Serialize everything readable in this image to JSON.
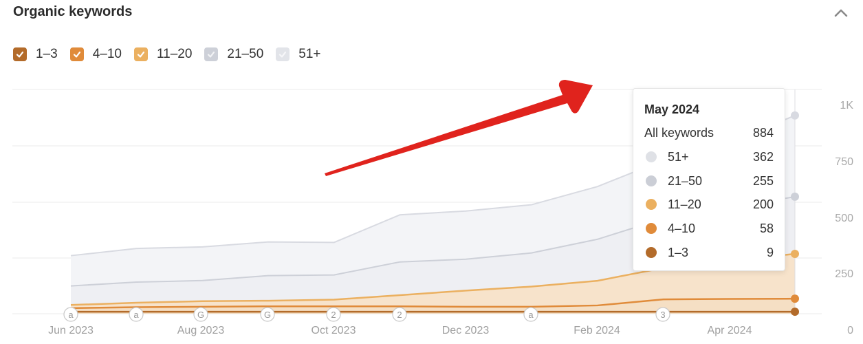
{
  "header": {
    "title": "Organic keywords",
    "collapse_icon": "chevron-up-icon"
  },
  "legend": {
    "items": [
      {
        "label": "1–3",
        "color": "#b36b2a",
        "checked": true
      },
      {
        "label": "4–10",
        "color": "#e08b3a",
        "checked": true
      },
      {
        "label": "11–20",
        "color": "#ebb060",
        "checked": true
      },
      {
        "label": "21–50",
        "color": "#cdd0d8",
        "checked": true
      },
      {
        "label": "51+",
        "color": "#e2e4e9",
        "checked": true
      }
    ]
  },
  "annotation": {
    "type": "red-arrow-icon",
    "color": "#e0231d"
  },
  "tooltip": {
    "title": "May 2024",
    "total_label": "All keywords",
    "total_value": "884",
    "rows": [
      {
        "label": "51+",
        "value": "362",
        "color": "#dfe1e6"
      },
      {
        "label": "21–50",
        "value": "255",
        "color": "#cbced6"
      },
      {
        "label": "11–20",
        "value": "200",
        "color": "#ebb060"
      },
      {
        "label": "4–10",
        "value": "58",
        "color": "#e08b3a"
      },
      {
        "label": "1–3",
        "value": "9",
        "color": "#b36b2a"
      }
    ]
  },
  "axis": {
    "x_labels": [
      "Jun 2023",
      "Aug 2023",
      "Oct 2023",
      "Dec 2023",
      "Feb 2024",
      "Apr 2024"
    ],
    "y_labels": [
      "1K",
      "750",
      "500",
      "250",
      "0"
    ]
  },
  "markers": [
    "a",
    "a",
    "G",
    "G",
    "2",
    "2",
    "a",
    "3"
  ],
  "chart_data": {
    "type": "area",
    "title": "Organic keywords",
    "stacked": true,
    "x": [
      "Jun 2023",
      "Jul 2023",
      "Aug 2023",
      "Sep 2023",
      "Oct 2023",
      "Nov 2023",
      "Dec 2023",
      "Jan 2024",
      "Feb 2024",
      "Mar 2024",
      "Apr 2024",
      "May 2024"
    ],
    "series": [
      {
        "name": "1–3",
        "color": "#b36b2a",
        "values": [
          9,
          9,
          9,
          9,
          9,
          9,
          9,
          9,
          9,
          9,
          9,
          9
        ]
      },
      {
        "name": "4–10",
        "color": "#e08b3a",
        "values": [
          16,
          20,
          22,
          24,
          24,
          24,
          22,
          22,
          28,
          55,
          57,
          58
        ]
      },
      {
        "name": "11–20",
        "color": "#ebb060",
        "values": [
          14,
          20,
          25,
          25,
          30,
          50,
          72,
          90,
          110,
          140,
          170,
          200
        ]
      },
      {
        "name": "21–50",
        "color": "#cdd0d8",
        "values": [
          85,
          92,
          92,
          112,
          110,
          148,
          140,
          150,
          185,
          220,
          235,
          255
        ]
      },
      {
        "name": "51+",
        "color": "#e2e4e9",
        "values": [
          135,
          150,
          150,
          150,
          145,
          210,
          215,
          215,
          235,
          260,
          290,
          362
        ]
      }
    ],
    "totals": [
      259,
      291,
      298,
      320,
      318,
      441,
      458,
      486,
      567,
      684,
      761,
      884
    ],
    "xlabel": "",
    "ylabel": "",
    "ylim": [
      0,
      1000
    ],
    "y_ticks": [
      0,
      250,
      500,
      750,
      1000
    ],
    "y_axis_position": "right",
    "grid": true,
    "legend_position": "top-left",
    "hover_point": "May 2024"
  }
}
